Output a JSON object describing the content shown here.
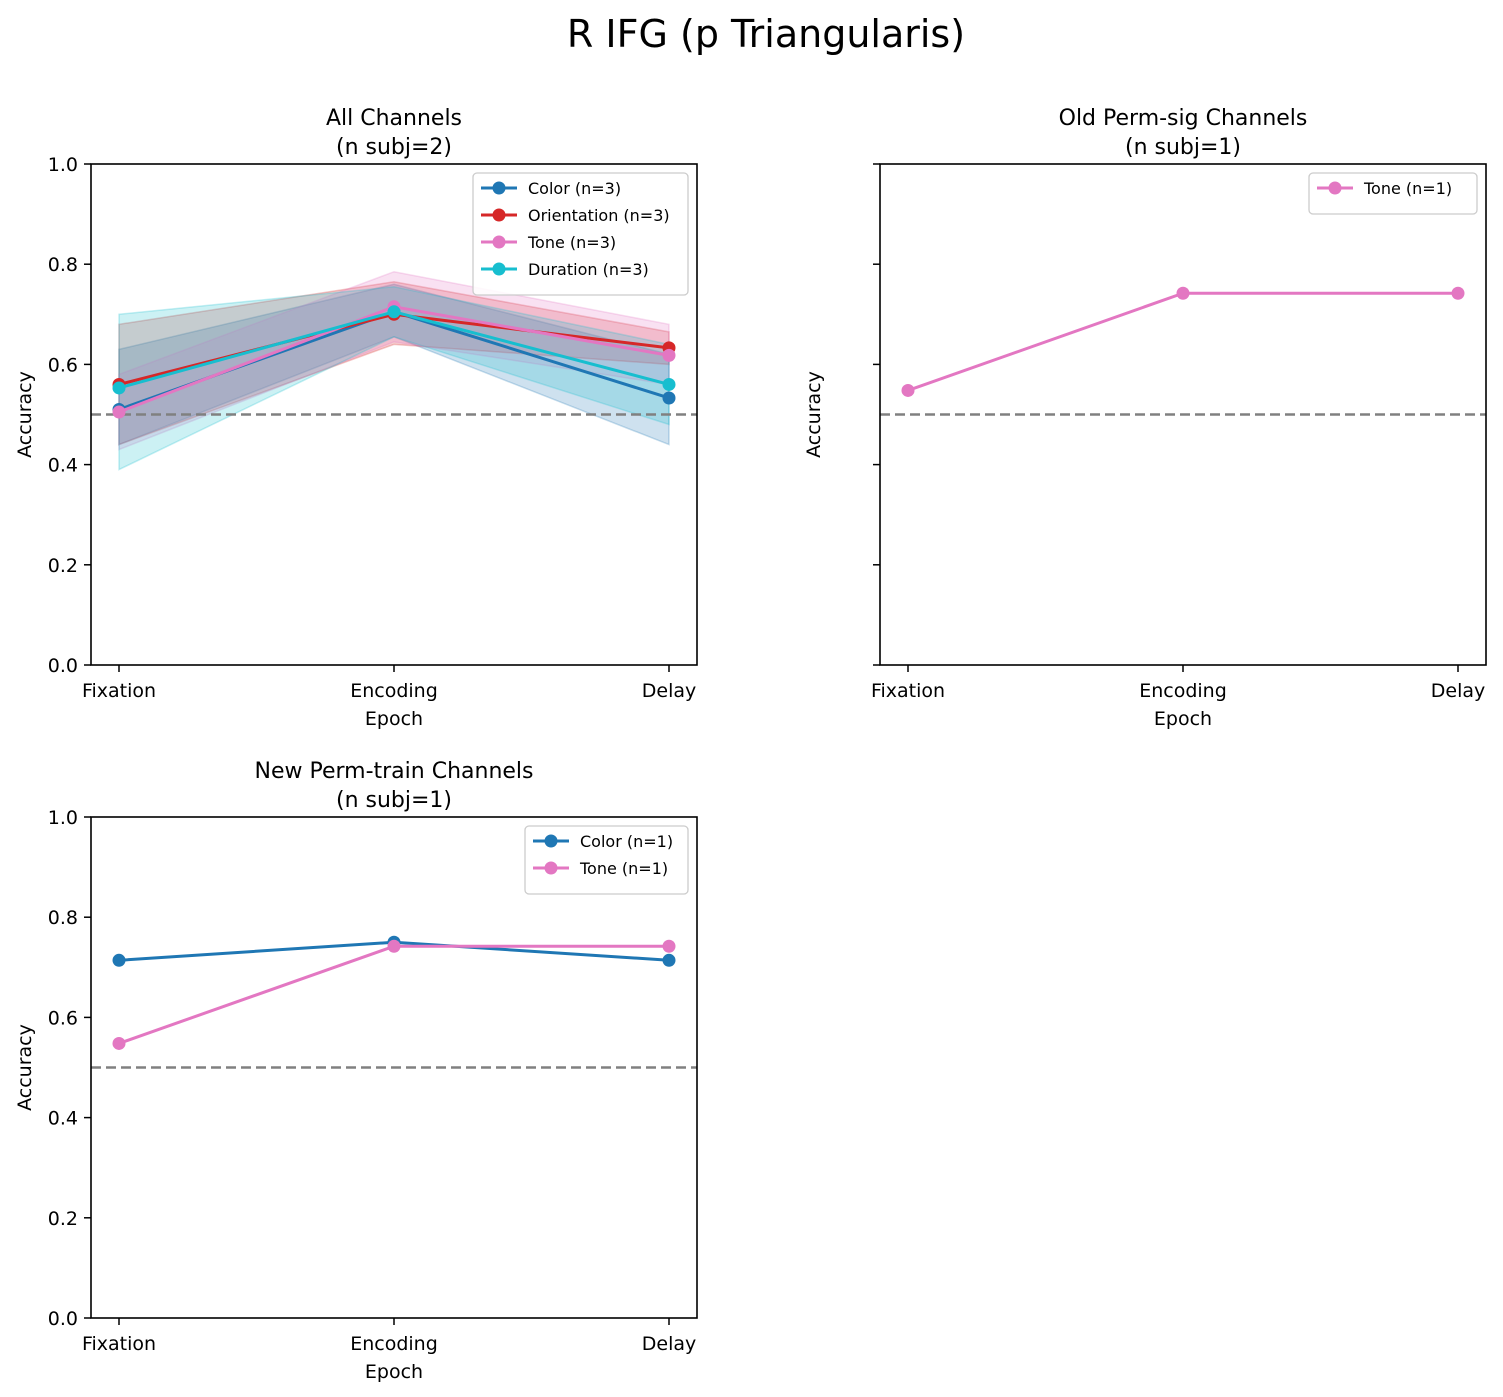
{
  "figure": {
    "suptitle": "R IFG (p Triangularis)"
  },
  "chart_data": [
    {
      "type": "line",
      "title": "All Channels\n(n subj=2)",
      "xlabel": "Epoch",
      "ylabel": "Accuracy",
      "categories": [
        "Fixation",
        "Encoding",
        "Delay"
      ],
      "ylim": [
        0.0,
        1.0
      ],
      "yticks": [
        "0.0",
        "0.2",
        "0.4",
        "0.6",
        "0.8",
        "1.0"
      ],
      "show_yticklabels": true,
      "chance_level": 0.5,
      "grid": false,
      "legend_position": "top-right",
      "series": [
        {
          "name": "Color (n=3)",
          "color": "#1f77b4",
          "values": [
            0.51,
            0.705,
            0.533
          ],
          "lower": [
            0.44,
            0.655,
            0.44
          ],
          "upper": [
            0.63,
            0.76,
            0.62
          ]
        },
        {
          "name": "Orientation (n=3)",
          "color": "#d62728",
          "values": [
            0.56,
            0.7,
            0.633
          ],
          "lower": [
            0.44,
            0.64,
            0.6
          ],
          "upper": [
            0.68,
            0.765,
            0.665
          ]
        },
        {
          "name": "Tone (n=3)",
          "color": "#e377c2",
          "values": [
            0.505,
            0.715,
            0.618
          ],
          "lower": [
            0.43,
            0.645,
            0.56
          ],
          "upper": [
            0.58,
            0.785,
            0.68
          ]
        },
        {
          "name": "Duration (n=3)",
          "color": "#17becf",
          "values": [
            0.553,
            0.705,
            0.56
          ],
          "lower": [
            0.39,
            0.655,
            0.48
          ],
          "upper": [
            0.7,
            0.755,
            0.64
          ]
        }
      ]
    },
    {
      "type": "line",
      "title": "Old Perm-sig Channels\n(n subj=1)",
      "xlabel": "Epoch",
      "ylabel": "Accuracy",
      "categories": [
        "Fixation",
        "Encoding",
        "Delay"
      ],
      "ylim": [
        0.0,
        1.0
      ],
      "yticks": [
        "0.0",
        "0.2",
        "0.4",
        "0.6",
        "0.8",
        "1.0"
      ],
      "show_yticklabels": false,
      "chance_level": 0.5,
      "grid": false,
      "legend_position": "top-right",
      "series": [
        {
          "name": "Tone (n=1)",
          "color": "#e377c2",
          "values": [
            0.548,
            0.742,
            0.742
          ]
        }
      ]
    },
    {
      "type": "line",
      "title": "New Perm-train Channels\n(n subj=1)",
      "xlabel": "Epoch",
      "ylabel": "Accuracy",
      "categories": [
        "Fixation",
        "Encoding",
        "Delay"
      ],
      "ylim": [
        0.0,
        1.0
      ],
      "yticks": [
        "0.0",
        "0.2",
        "0.4",
        "0.6",
        "0.8",
        "1.0"
      ],
      "show_yticklabels": true,
      "chance_level": 0.5,
      "grid": false,
      "legend_position": "top-right",
      "series": [
        {
          "name": "Color (n=1)",
          "color": "#1f77b4",
          "values": [
            0.714,
            0.75,
            0.714
          ]
        },
        {
          "name": "Tone (n=1)",
          "color": "#e377c2",
          "values": [
            0.548,
            0.742,
            0.742
          ]
        }
      ]
    }
  ]
}
